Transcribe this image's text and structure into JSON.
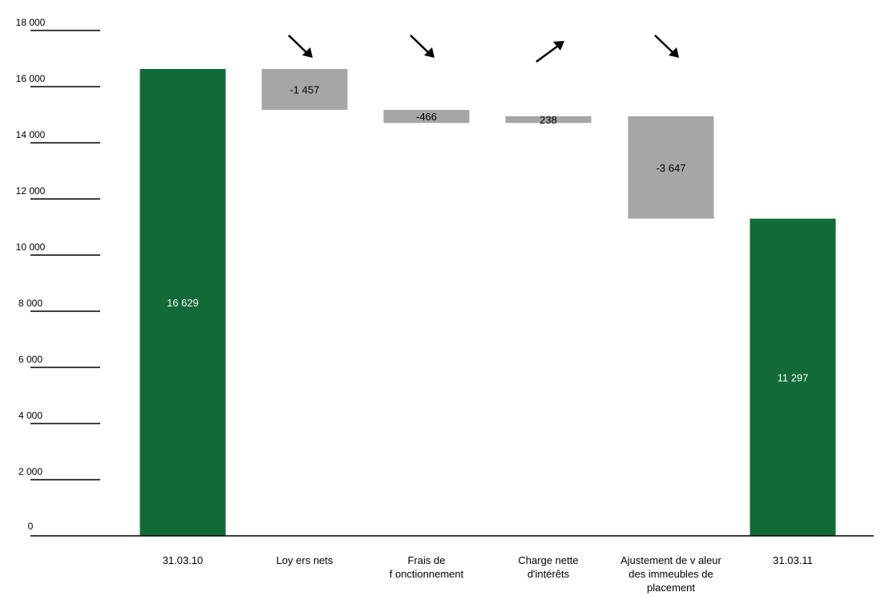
{
  "chart_data": {
    "type": "bar",
    "subtype": "waterfall",
    "title": "",
    "xlabel": "",
    "ylabel": "",
    "ylim": [
      0,
      18000
    ],
    "yticks": [
      0,
      2000,
      4000,
      6000,
      8000,
      10000,
      12000,
      14000,
      16000,
      18000
    ],
    "ytick_labels": [
      "0",
      "2 000",
      "4 000",
      "6 000",
      "8 000",
      "10 000",
      "12 000",
      "14 000",
      "16 000",
      "18 000"
    ],
    "grid": false,
    "bars": [
      {
        "category_lines": [
          "31.03.10"
        ],
        "kind": "total",
        "start": 0,
        "end": 16629,
        "label": "16 629",
        "color": "#116a38",
        "arrow": "none"
      },
      {
        "category_lines": [
          "Loy ers nets"
        ],
        "kind": "delta",
        "start": 16629,
        "end": 15172,
        "label": "-1 457",
        "color": "#a6a6a6",
        "arrow": "down"
      },
      {
        "category_lines": [
          "Frais de",
          "f onctionnement"
        ],
        "kind": "delta",
        "start": 15172,
        "end": 14706,
        "label": "-466",
        "color": "#a6a6a6",
        "arrow": "down"
      },
      {
        "category_lines": [
          "Charge nette",
          "d'intérêts"
        ],
        "kind": "delta",
        "start": 14706,
        "end": 14944,
        "label": "238",
        "color": "#a6a6a6",
        "arrow": "up"
      },
      {
        "category_lines": [
          "Ajustement de v aleur",
          "des immeubles de",
          "placement"
        ],
        "kind": "delta",
        "start": 14944,
        "end": 11297,
        "label": "-3 647",
        "color": "#a6a6a6",
        "arrow": "down"
      },
      {
        "category_lines": [
          "31.03.11"
        ],
        "kind": "total",
        "start": 0,
        "end": 11297,
        "label": "11 297",
        "color": "#116a38",
        "arrow": "none"
      }
    ],
    "colors": {
      "total": "#116a38",
      "delta": "#a6a6a6",
      "total_label": "#ffffff",
      "delta_label": "#000000"
    }
  }
}
